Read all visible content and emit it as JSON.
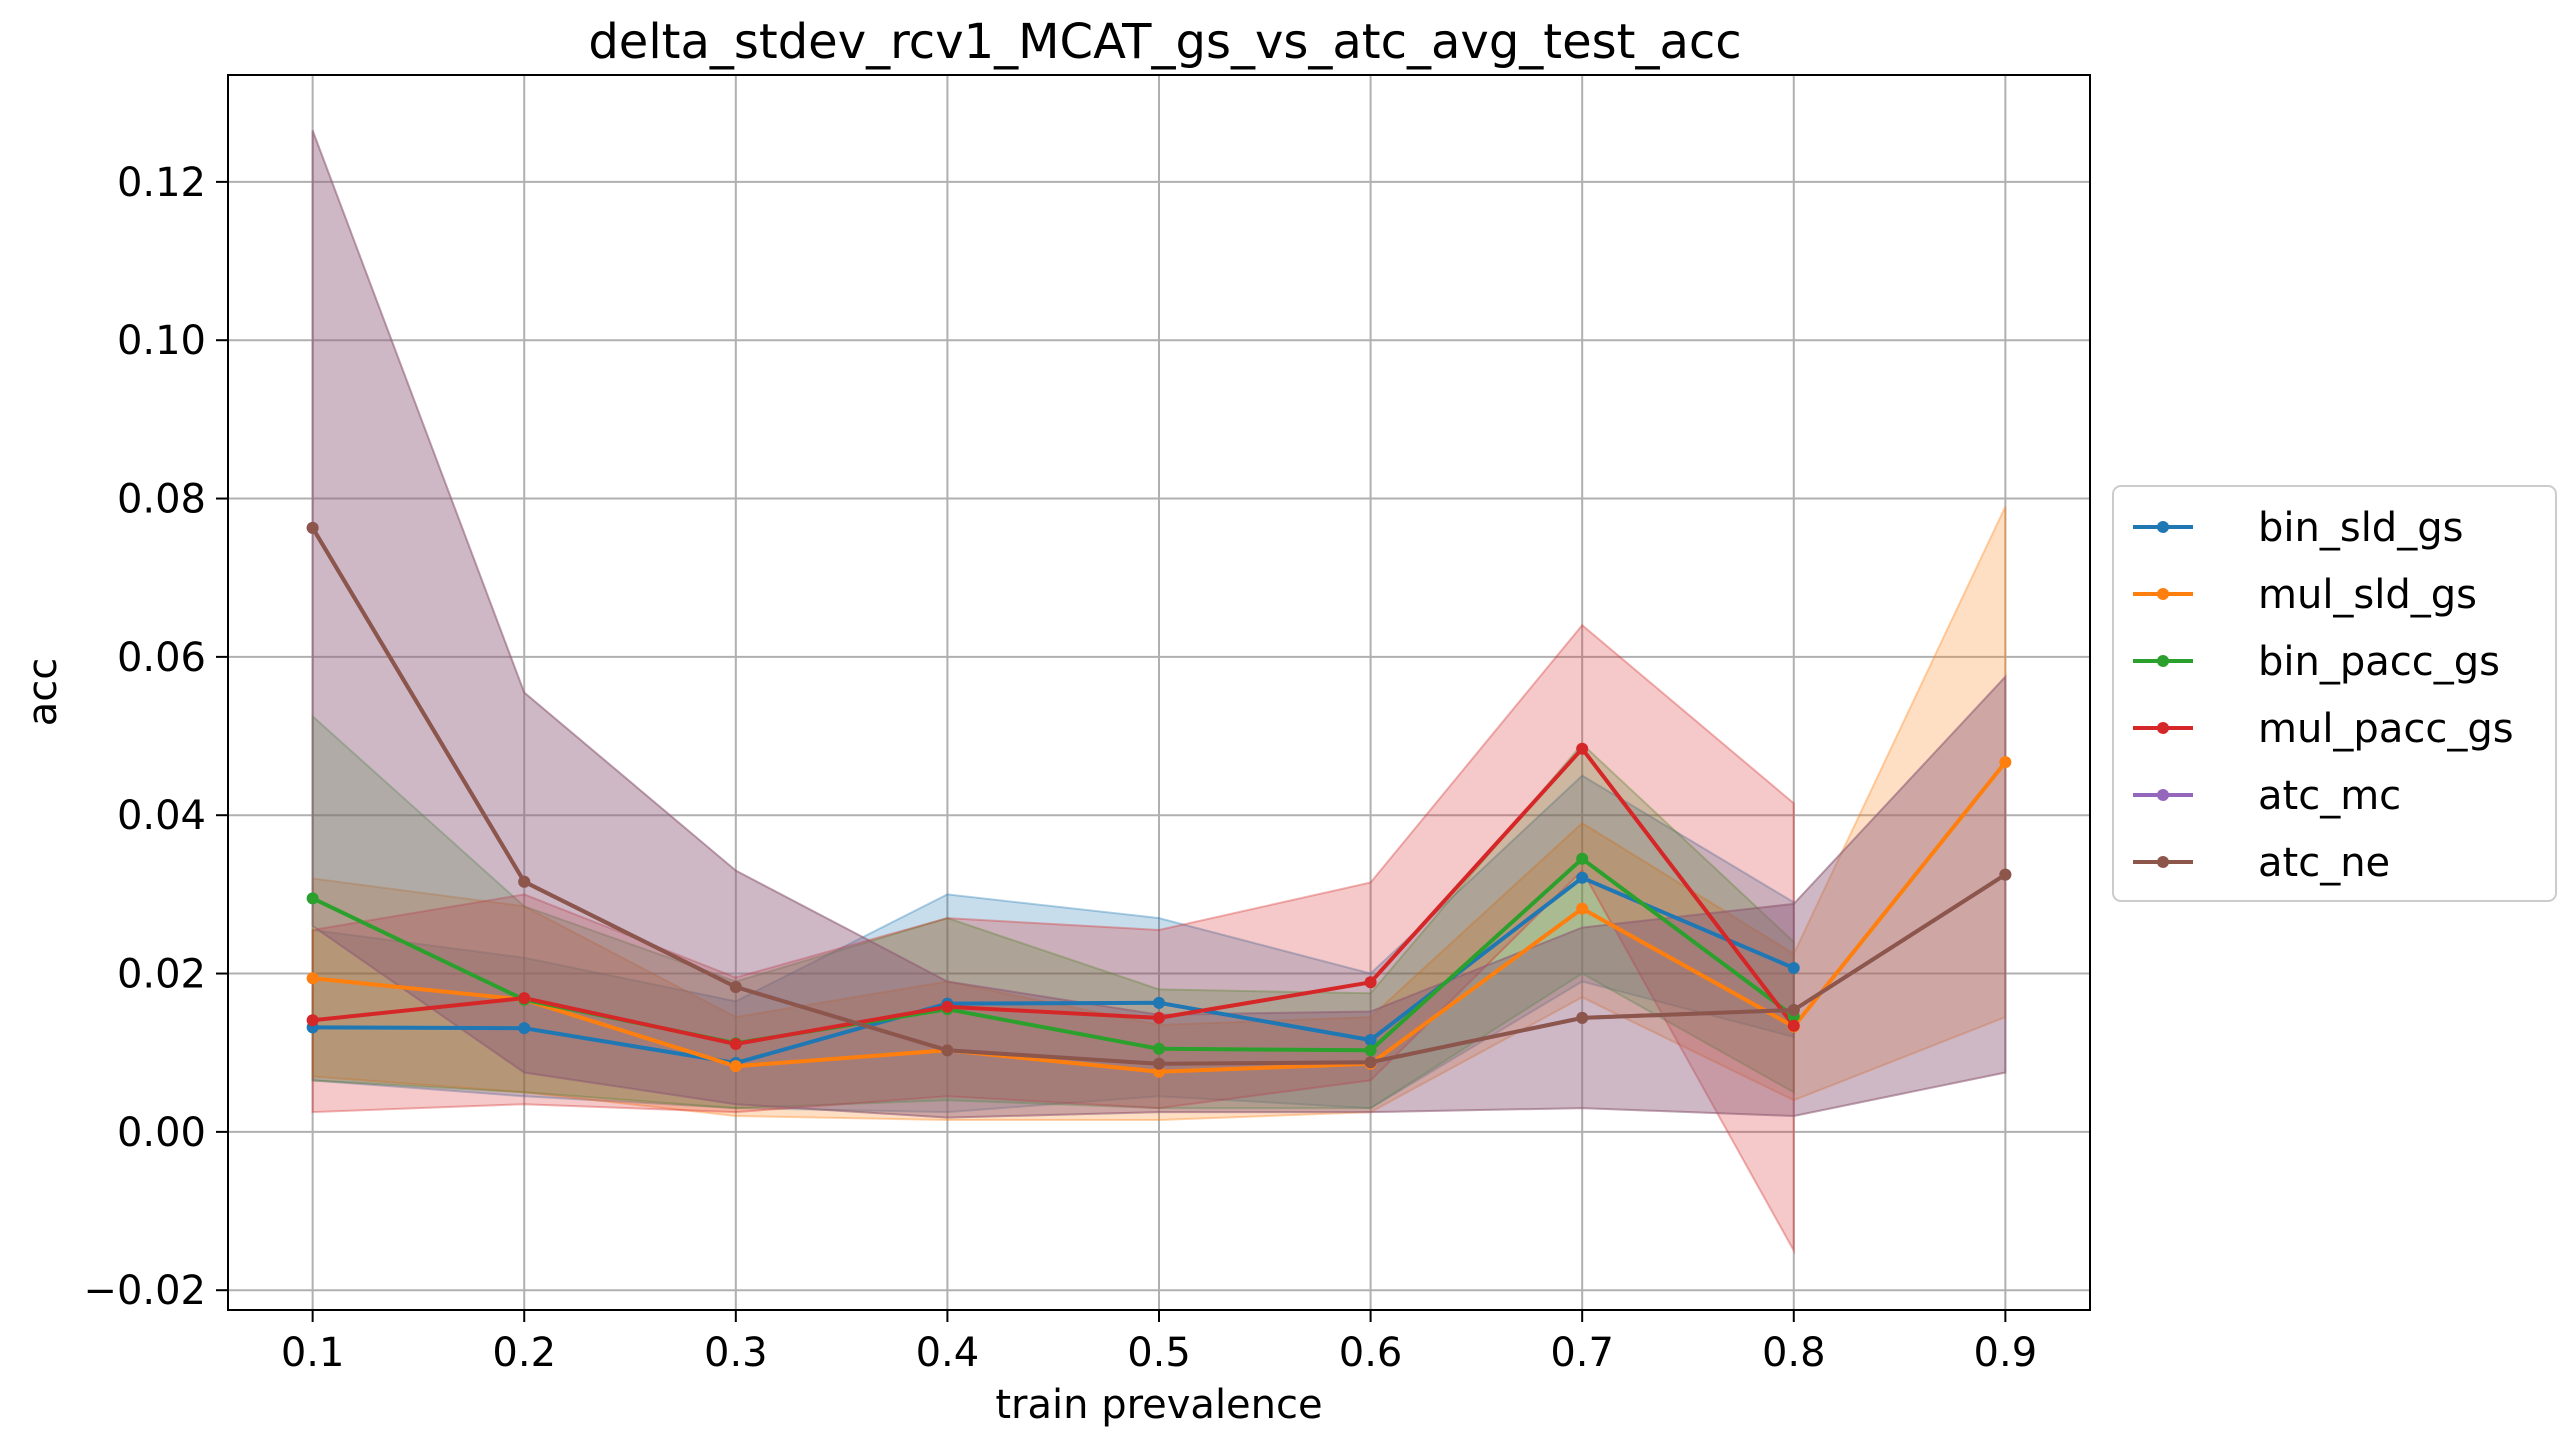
{
  "chart_data": {
    "type": "line",
    "title": "delta_stdev_rcv1_MCAT_gs_vs_atc_avg_test_acc",
    "xlabel": "train prevalence",
    "ylabel": "acc",
    "x": [
      0.1,
      0.2,
      0.3,
      0.4,
      0.5,
      0.6,
      0.7,
      0.8,
      0.9
    ],
    "x_tick_labels": [
      "0.1",
      "0.2",
      "0.3",
      "0.4",
      "0.5",
      "0.6",
      "0.7",
      "0.8",
      "0.9"
    ],
    "xlim": [
      0.06,
      0.94
    ],
    "ylim": [
      -0.0225,
      0.1335
    ],
    "y_ticks": [
      -0.02,
      0.0,
      0.02,
      0.04,
      0.06,
      0.08,
      0.1,
      0.12
    ],
    "y_tick_labels": [
      "−0.02",
      "0.00",
      "0.02",
      "0.04",
      "0.06",
      "0.08",
      "0.10",
      "0.12"
    ],
    "grid": true,
    "legend_position": "right-outside-center",
    "series": [
      {
        "name": "bin_sld_gs",
        "color": "#1f77b4",
        "x": [
          0.1,
          0.2,
          0.3,
          0.4,
          0.5,
          0.6,
          0.7,
          0.8
        ],
        "values": [
          0.0132,
          0.0131,
          0.0087,
          0.0162,
          0.0163,
          0.0116,
          0.0321,
          0.0207
        ],
        "lower": [
          0.0065,
          0.0045,
          0.003,
          0.0025,
          0.0045,
          0.003,
          0.019,
          0.012
        ],
        "upper": [
          0.0255,
          0.022,
          0.0165,
          0.03,
          0.027,
          0.02,
          0.045,
          0.029
        ]
      },
      {
        "name": "mul_sld_gs",
        "color": "#ff7f0e",
        "x": [
          0.1,
          0.2,
          0.3,
          0.4,
          0.5,
          0.6,
          0.7,
          0.8,
          0.9
        ],
        "values": [
          0.0194,
          0.0167,
          0.0083,
          0.0103,
          0.0076,
          0.0086,
          0.0282,
          0.0133,
          0.0467
        ],
        "lower": [
          0.007,
          0.005,
          0.002,
          0.0015,
          0.0015,
          0.0025,
          0.017,
          0.004,
          0.0145
        ],
        "upper": [
          0.032,
          0.0285,
          0.0145,
          0.019,
          0.0135,
          0.0145,
          0.039,
          0.0225,
          0.079
        ]
      },
      {
        "name": "bin_pacc_gs",
        "color": "#2ca02c",
        "x": [
          0.1,
          0.2,
          0.3,
          0.4,
          0.5,
          0.6,
          0.7,
          0.8
        ],
        "values": [
          0.0295,
          0.0167,
          0.0112,
          0.0155,
          0.0105,
          0.0103,
          0.0345,
          0.0146
        ],
        "lower": [
          0.0065,
          0.005,
          0.003,
          0.004,
          0.003,
          0.003,
          0.02,
          0.005
        ],
        "upper": [
          0.0525,
          0.0285,
          0.019,
          0.027,
          0.018,
          0.0175,
          0.049,
          0.024
        ]
      },
      {
        "name": "mul_pacc_gs",
        "color": "#d62728",
        "x": [
          0.1,
          0.2,
          0.3,
          0.4,
          0.5,
          0.6,
          0.7,
          0.8
        ],
        "values": [
          0.0141,
          0.0169,
          0.0111,
          0.0158,
          0.0144,
          0.0189,
          0.0484,
          0.0134
        ],
        "lower": [
          0.0025,
          0.0035,
          0.0025,
          0.0045,
          0.003,
          0.0065,
          0.033,
          -0.015
        ],
        "upper": [
          0.0255,
          0.03,
          0.0195,
          0.027,
          0.0255,
          0.0315,
          0.064,
          0.0415
        ]
      },
      {
        "name": "atc_mc",
        "color": "#9467bd",
        "x": [
          0.1,
          0.2,
          0.3,
          0.4,
          0.5,
          0.6,
          0.7,
          0.8,
          0.9
        ],
        "values": [
          0.0763,
          0.0316,
          0.0183,
          0.0103,
          0.0086,
          0.0088,
          0.0144,
          0.0154,
          0.0325
        ],
        "lower": [
          0.026,
          0.0075,
          0.0035,
          0.0018,
          0.0025,
          0.0025,
          0.003,
          0.002,
          0.0075
        ],
        "upper": [
          0.1265,
          0.0555,
          0.033,
          0.019,
          0.0148,
          0.0152,
          0.0258,
          0.0288,
          0.0575
        ]
      },
      {
        "name": "atc_ne",
        "color": "#8c564b",
        "x": [
          0.1,
          0.2,
          0.3,
          0.4,
          0.5,
          0.6,
          0.7,
          0.8,
          0.9
        ],
        "values": [
          0.0763,
          0.0316,
          0.0183,
          0.0103,
          0.0086,
          0.0088,
          0.0144,
          0.0154,
          0.0325
        ],
        "lower": [
          0.026,
          0.0075,
          0.0035,
          0.0018,
          0.0025,
          0.0025,
          0.003,
          0.002,
          0.0075
        ],
        "upper": [
          0.1265,
          0.0555,
          0.033,
          0.019,
          0.0148,
          0.0152,
          0.0258,
          0.0288,
          0.0575
        ]
      }
    ]
  }
}
